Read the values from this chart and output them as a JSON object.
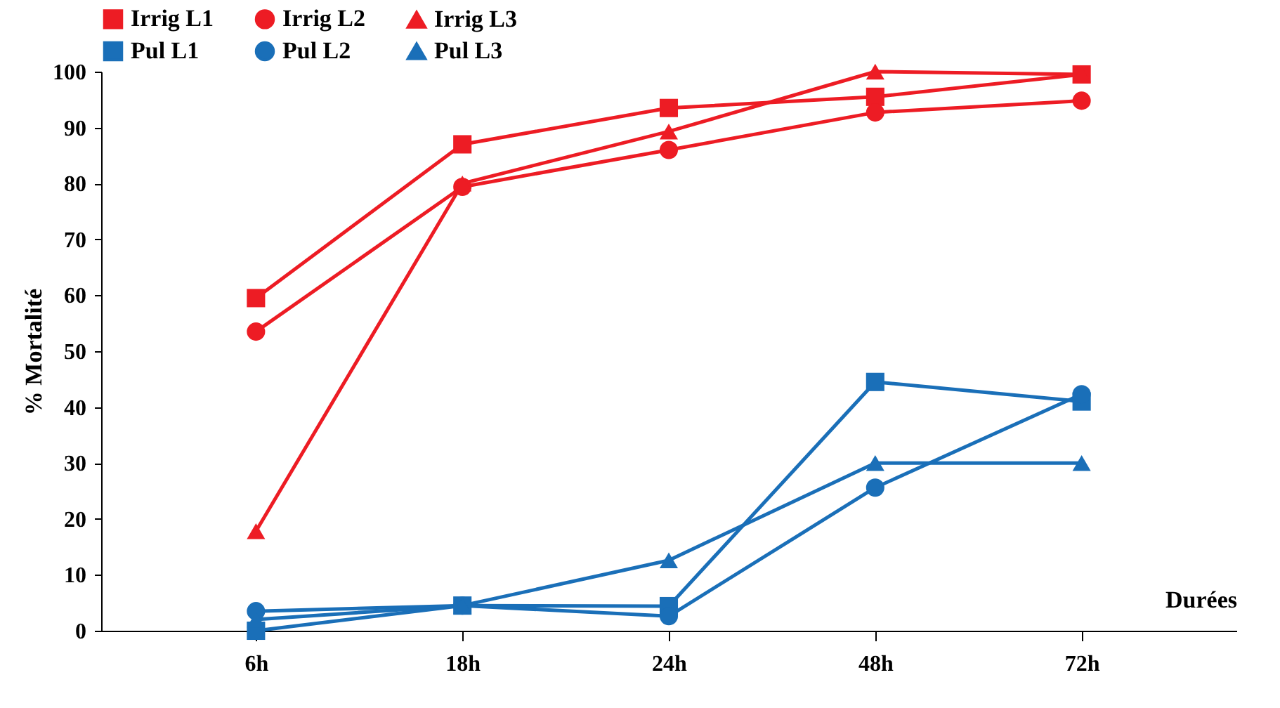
{
  "chart_data": {
    "type": "line",
    "ylabel": "% Mortalité",
    "xlabel": "Durées",
    "categories": [
      "6h",
      "18h",
      "24h",
      "48h",
      "72h"
    ],
    "ylim": [
      0,
      100
    ],
    "yticks": [
      0,
      10,
      20,
      30,
      40,
      50,
      60,
      70,
      80,
      90,
      100
    ],
    "grid": false,
    "legend": "top",
    "line_style": "solid",
    "series": [
      {
        "name": "Irrig L1",
        "color": "#ed1c24",
        "marker": "square",
        "values": [
          59.5,
          87,
          93.5,
          95.5,
          99.5
        ]
      },
      {
        "name": "Irrig L2",
        "color": "#ed1c24",
        "marker": "circle",
        "values": [
          53.5,
          79.4,
          86,
          92.7,
          94.8
        ]
      },
      {
        "name": "Irrig L3",
        "color": "#ed1c24",
        "marker": "triangle",
        "values": [
          17.8,
          80,
          89.3,
          100,
          99.5
        ]
      },
      {
        "name": "Pul L1",
        "color": "#1a6fb8",
        "marker": "square",
        "values": [
          0,
          4.5,
          4.4,
          44.5,
          41
        ]
      },
      {
        "name": "Pul L2",
        "color": "#1a6fb8",
        "marker": "circle",
        "values": [
          3.5,
          4.5,
          2.6,
          25.6,
          42.3
        ]
      },
      {
        "name": "Pul L3",
        "color": "#1a6fb8",
        "marker": "triangle",
        "values": [
          2,
          4.5,
          12.6,
          30,
          30
        ]
      }
    ]
  }
}
